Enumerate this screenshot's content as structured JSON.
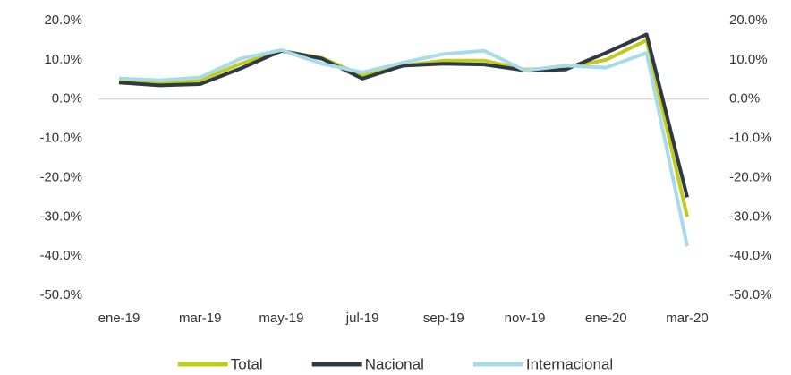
{
  "chart_data": {
    "type": "line",
    "categories": [
      "ene-19",
      null,
      "mar-19",
      null,
      "may-19",
      null,
      "jul-19",
      null,
      "sep-19",
      null,
      "nov-19",
      null,
      "ene-20",
      null,
      "mar-20"
    ],
    "series": [
      {
        "name": "Total",
        "color": "#bfcc1e",
        "values": [
          4.8,
          4.2,
          4.8,
          9.0,
          12.3,
          10.5,
          6.0,
          8.5,
          9.8,
          9.8,
          7.5,
          8.0,
          10.0,
          15.0,
          -30.0
        ]
      },
      {
        "name": "Nacional",
        "color": "#2e3943",
        "values": [
          4.2,
          3.5,
          3.8,
          7.8,
          12.3,
          10.3,
          5.2,
          8.5,
          9.0,
          8.8,
          7.3,
          7.5,
          11.8,
          16.5,
          -25.0
        ]
      },
      {
        "name": "Internacional",
        "color": "#a8dbe7",
        "values": [
          5.3,
          4.8,
          5.5,
          10.3,
          12.5,
          9.0,
          6.8,
          9.3,
          11.5,
          12.3,
          7.3,
          8.5,
          8.0,
          11.8,
          -37.5
        ]
      }
    ],
    "ylim": [
      -50,
      20
    ],
    "yticks": [
      {
        "value": 20,
        "label": "20.0%"
      },
      {
        "value": 10,
        "label": "10.0%"
      },
      {
        "value": 0,
        "label": "0.0%"
      },
      {
        "value": -10,
        "label": "-10.0%"
      },
      {
        "value": -20,
        "label": "-20.0%"
      },
      {
        "value": -30,
        "label": "-30.0%"
      },
      {
        "value": -40,
        "label": "-40.0%"
      },
      {
        "value": -50,
        "label": "-50.0%"
      }
    ],
    "y2lim": [
      -50,
      20
    ],
    "y2ticks": [
      {
        "value": 20,
        "label": "20.0%"
      },
      {
        "value": 10,
        "label": "10.0%"
      },
      {
        "value": 0,
        "label": "0.0%"
      },
      {
        "value": -10,
        "label": "-10.0%"
      },
      {
        "value": -20,
        "label": "-20.0%"
      },
      {
        "value": -30,
        "label": "-30.0%"
      },
      {
        "value": -40,
        "label": "-40.0%"
      },
      {
        "value": -50,
        "label": "-50.0%"
      }
    ],
    "grid": false,
    "legend": "bottom"
  }
}
